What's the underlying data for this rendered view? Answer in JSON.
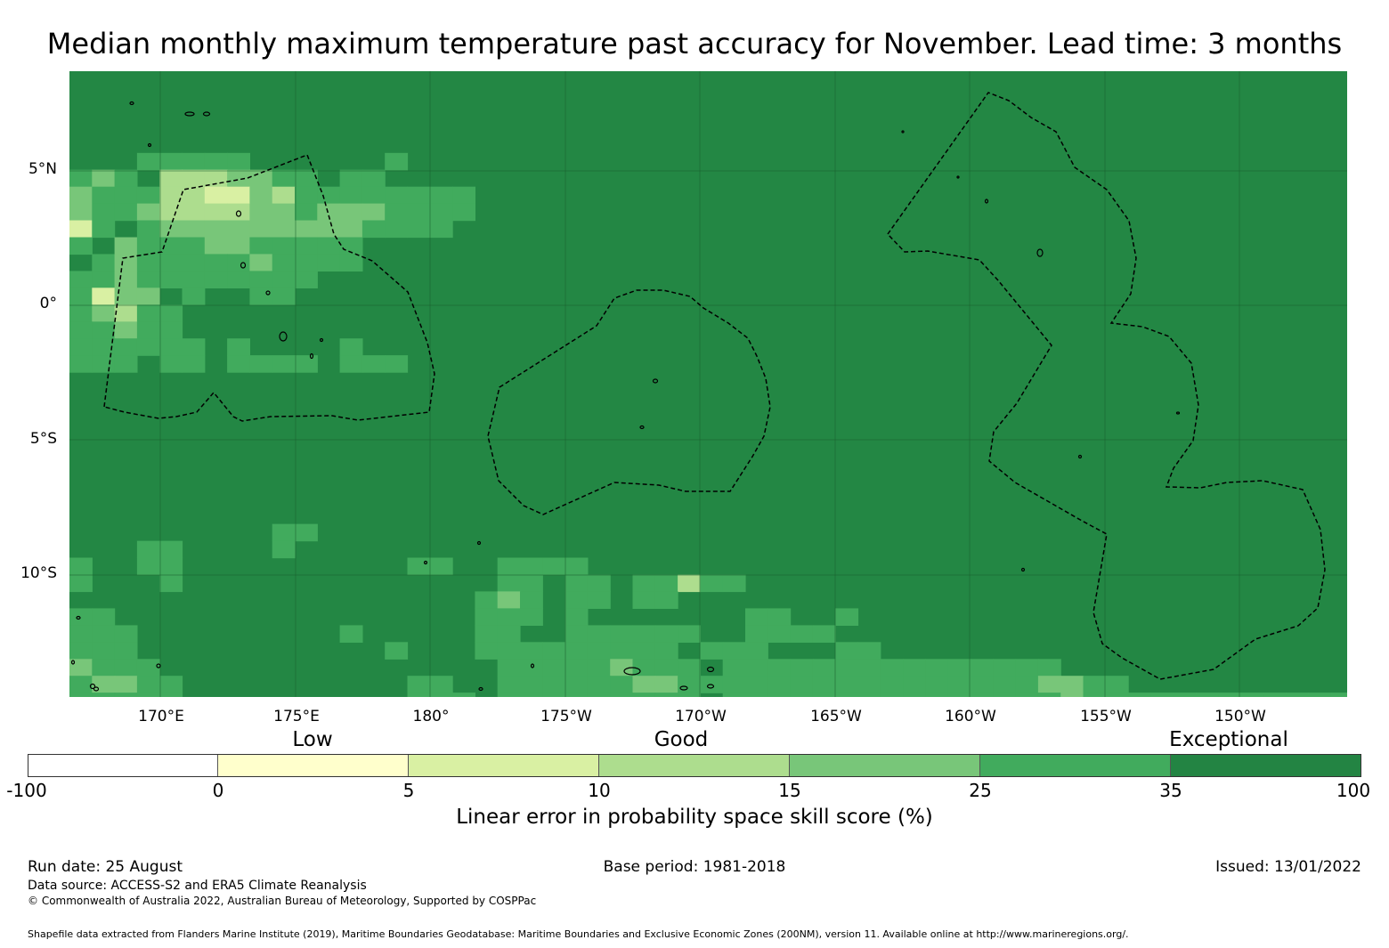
{
  "title": "Median monthly maximum temperature past accuracy for November. Lead time: 3 months",
  "map": {
    "latitude_labels": [
      "5°N",
      "0°",
      "5°S",
      "10°S"
    ],
    "longitude_labels": [
      "170°E",
      "175°E",
      "180°",
      "175°W",
      "170°W",
      "165°W",
      "160°W",
      "155°W",
      "150°W"
    ],
    "category_labels": [
      "Low",
      "Good",
      "Exceptional"
    ],
    "default_category_color": "#238744",
    "land_outline_color": "#000000",
    "eez_boundary_style": "dashed"
  },
  "colorbar": {
    "title": "Linear error in probability space skill score (%)",
    "tick_labels": [
      "-100",
      "0",
      "5",
      "10",
      "15",
      "25",
      "35",
      "100"
    ],
    "colors": [
      "#ffffff",
      "#ffffcc",
      "#d9f0a3",
      "#addd8e",
      "#78c679",
      "#41ab5d",
      "#238443"
    ]
  },
  "footer": {
    "run_date": "Run date: 25 August",
    "base_period": "Base period: 1981-2018",
    "issued": "Issued: 13/01/2022",
    "data_source": "Data source: ACCESS-S2 and ERA5 Climate Reanalysis",
    "copyright": "© Commonwealth of Australia 2022, Australian Bureau of Meteorology, Supported by COSPPac",
    "shapefile_note": "Shapefile data extracted from Flanders Marine Institute (2019), Maritime Boundaries Geodatabase: Maritime Boundaries and Exclusive Economic Zones (200NM), version 11. Available online at http://www.marineregions.org/."
  }
}
